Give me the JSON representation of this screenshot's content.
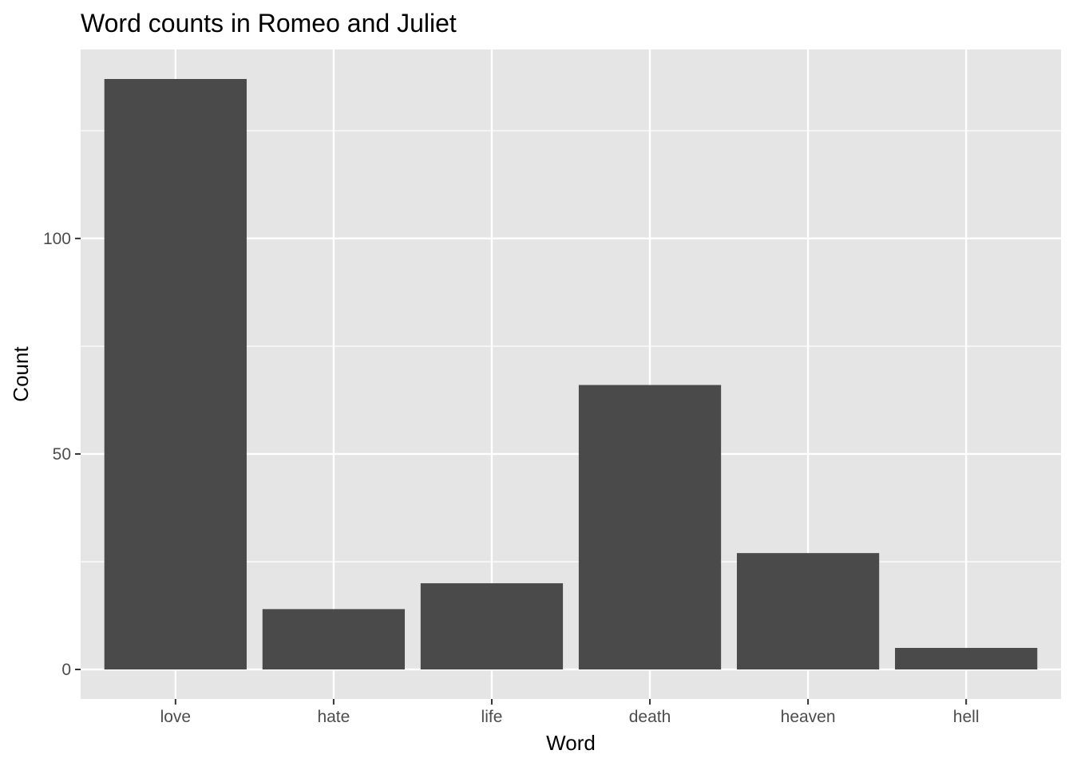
{
  "chart_data": {
    "type": "bar",
    "title": "Word counts in Romeo and Juliet",
    "xlabel": "Word",
    "ylabel": "Count",
    "categories": [
      "love",
      "hate",
      "life",
      "death",
      "heaven",
      "hell"
    ],
    "values": [
      137,
      14,
      20,
      66,
      27,
      5
    ],
    "ylim": [
      -6.85,
      143.85
    ],
    "y_ticks": [
      0,
      50,
      100
    ],
    "y_tick_labels": [
      "0",
      "50",
      "100"
    ],
    "grid": true,
    "legend": "none",
    "colors": {
      "bar": "#4a4a4a",
      "panel_background": "#e5e5e5",
      "grid": "#ffffff",
      "tick_text": "#4d4d4d",
      "tick_mark": "#333333"
    }
  }
}
